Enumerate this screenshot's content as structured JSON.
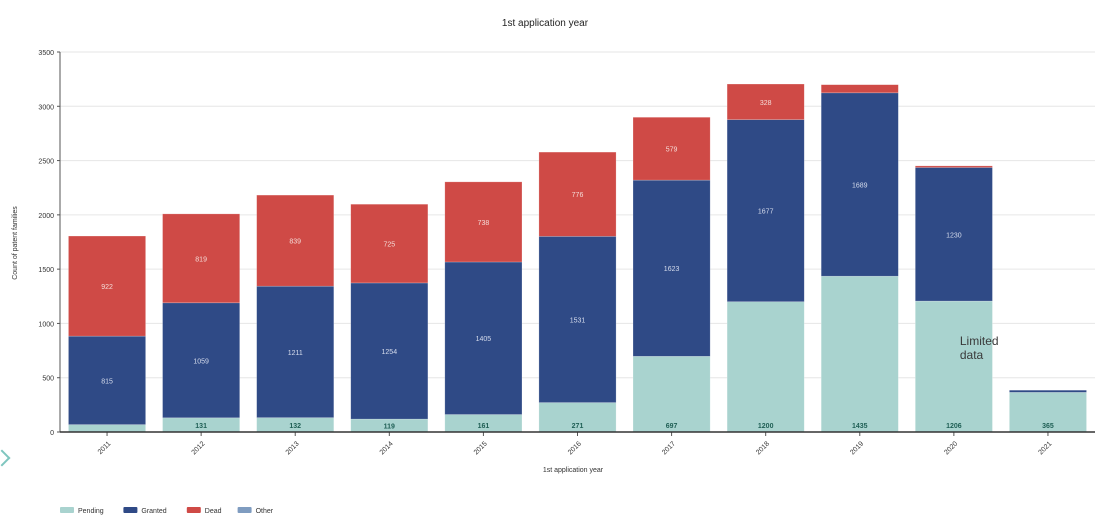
{
  "chart_data": {
    "type": "bar",
    "stacked": true,
    "title": "1st application year",
    "xlabel": "1st application year",
    "ylabel": "Count of patent families",
    "ylim": [
      0,
      3500
    ],
    "yticks": [
      0,
      500,
      1000,
      1500,
      2000,
      2500,
      3000,
      3500
    ],
    "grid": true,
    "legend_position": "bottom-left",
    "categories": [
      "2011",
      "2012",
      "2013",
      "2014",
      "2015",
      "2016",
      "2017",
      "2018",
      "2019",
      "2020",
      "2021"
    ],
    "series": [
      {
        "name": "Pending",
        "color": "#a9d3cf",
        "label_color": "#1f5f55",
        "values": [
          68,
          131,
          132,
          119,
          161,
          271,
          697,
          1200,
          1435,
          1206,
          365
        ],
        "labels": [
          null,
          "131",
          "132",
          "119",
          "161",
          "271",
          "697",
          "1200",
          "1435",
          "1206",
          "365"
        ]
      },
      {
        "name": "Granted",
        "color": "#2f4a86",
        "label_color": "#d6dcec",
        "values": [
          815,
          1059,
          1211,
          1254,
          1405,
          1531,
          1623,
          1677,
          1689,
          1230,
          20
        ],
        "labels": [
          "815",
          "1059",
          "1211",
          "1254",
          "1405",
          "1531",
          "1623",
          "1677",
          "1689",
          "1230",
          null
        ]
      },
      {
        "name": "Dead",
        "color": "#cf4a46",
        "label_color": "#f4dcd8",
        "values": [
          922,
          819,
          839,
          725,
          738,
          776,
          579,
          328,
          75,
          15,
          0
        ],
        "labels": [
          "922",
          "819",
          "839",
          "725",
          "738",
          "776",
          "579",
          "328",
          null,
          null,
          null
        ]
      },
      {
        "name": "Other",
        "color": "#7f9cc0",
        "label_color": "#ffffff",
        "values": [
          0,
          0,
          0,
          0,
          0,
          0,
          0,
          0,
          0,
          0,
          0
        ],
        "labels": [
          null,
          null,
          null,
          null,
          null,
          null,
          null,
          null,
          null,
          null,
          null
        ]
      }
    ],
    "annotations": [
      {
        "text": "Limited data",
        "category": "2020"
      }
    ]
  }
}
